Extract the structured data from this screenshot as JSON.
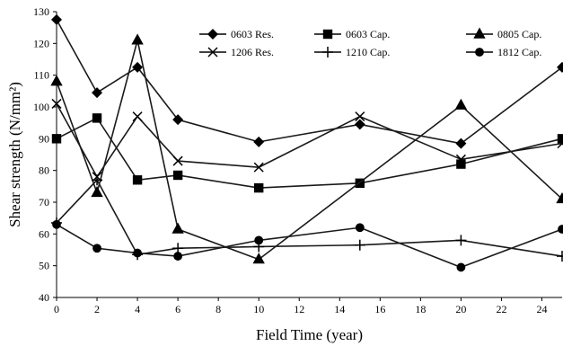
{
  "chart_data": {
    "type": "line",
    "title": "",
    "xlabel": "Field Time (year)",
    "ylabel": "Shear strength (N/mm²)",
    "xlim": [
      0,
      25
    ],
    "ylim": [
      40,
      130
    ],
    "xticks": [
      0,
      2,
      4,
      6,
      8,
      10,
      12,
      14,
      16,
      18,
      20,
      22,
      24
    ],
    "yticks": [
      40,
      50,
      60,
      70,
      80,
      90,
      100,
      110,
      120,
      130
    ],
    "grid": false,
    "legend_position": "top-right",
    "series": [
      {
        "name": "0603 Res.",
        "marker": "diamond",
        "x": [
          0,
          2,
          4,
          6,
          10,
          15,
          20,
          25
        ],
        "y": [
          127.5,
          104.5,
          112.5,
          96,
          89,
          94.5,
          88.5,
          112.5
        ]
      },
      {
        "name": "0603 Cap.",
        "marker": "square",
        "x": [
          0,
          2,
          4,
          6,
          10,
          15,
          20,
          25
        ],
        "y": [
          90,
          96.5,
          77,
          78.5,
          74.5,
          76,
          82,
          90
        ]
      },
      {
        "name": "0805 Cap.",
        "marker": "triangle",
        "x": [
          0,
          2,
          4,
          6,
          10,
          20,
          25
        ],
        "y": [
          108,
          73,
          121,
          61.5,
          52,
          100.5,
          71
        ]
      },
      {
        "name": "1206 Res.",
        "marker": "x",
        "x": [
          0,
          2,
          4,
          6,
          10,
          15,
          20,
          25
        ],
        "y": [
          101,
          78,
          97,
          83,
          81,
          97,
          83.5,
          88.5
        ]
      },
      {
        "name": "1210 Cap.",
        "marker": "plus",
        "x": [
          0,
          2,
          4,
          6,
          10,
          15,
          20,
          25
        ],
        "y": [
          63.5,
          77,
          53.5,
          55.5,
          56,
          56.5,
          58,
          53
        ]
      },
      {
        "name": "1812 Cap.",
        "marker": "circle",
        "x": [
          0,
          2,
          4,
          6,
          10,
          15,
          20,
          25
        ],
        "y": [
          63,
          55.5,
          54,
          53,
          58,
          62,
          49.5,
          61.5
        ]
      }
    ]
  }
}
